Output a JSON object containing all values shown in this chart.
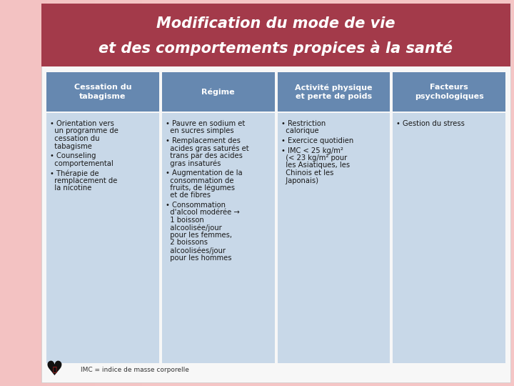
{
  "title_line1": "Modification du mode de vie",
  "title_line2": "et des comportements propices à la santé",
  "title_bg_color": "#a33a4a",
  "title_text_color": "#ffffff",
  "outer_bg_color": "#f5c5c5",
  "main_bg_color": "#f7f7f7",
  "header_bg_color": "#6688b0",
  "header_text_color": "#ffffff",
  "cell_bg_color": "#c8d8e8",
  "cell_text_color": "#1a1a1a",
  "footer_text": "IMC = indice de masse corporelle",
  "columns": [
    {
      "header": "Cessation du\ntabagisme",
      "bullets": [
        "• Orientation vers\n  un programme de\n  cessation du\n  tabagisme",
        "• Counseling\n  comportemental",
        "• Thérapie de\n  remplacement de\n  la nicotine"
      ]
    },
    {
      "header": "Régime",
      "bullets": [
        "• Pauvre en sodium et\n  en sucres simples",
        "• Remplacement des\n  acides gras saturés et\n  trans par des acides\n  gras insaturés",
        "• Augmentation de la\n  consommation de\n  fruits, de légumes\n  et de fibres",
        "• Consommation\n  d'alcool modérée →\n  1 boisson\n  alcoolisée/jour\n  pour les femmes,\n  2 boissons\n  alcoolisées/jour\n  pour les hommes"
      ]
    },
    {
      "header": "Activité physique\net perte de poids",
      "bullets": [
        "• Restriction\n  calorique",
        "• Exercice quotidien",
        "• IMC < 25 kg/m²\n  (< 23 kg/m² pour\n  les Asiatiques, les\n  Chinois et les\n  Japonais)"
      ]
    },
    {
      "header": "Facteurs\npsychologiques",
      "bullets": [
        "• Gestion du stress"
      ]
    }
  ]
}
